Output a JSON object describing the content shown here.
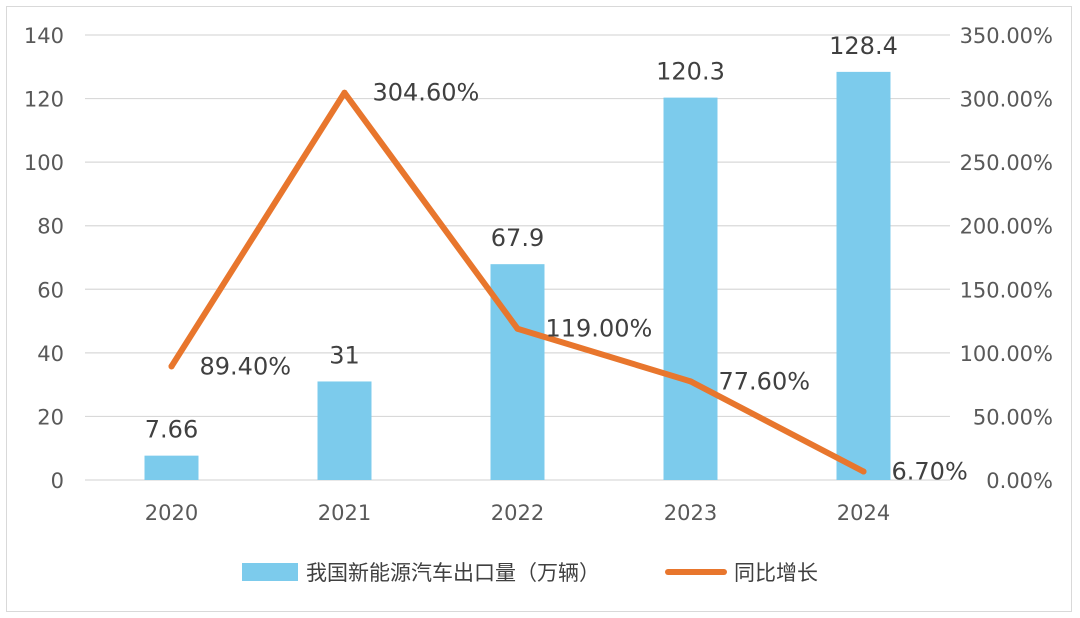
{
  "chart_data": {
    "type": "bar+line",
    "title": "",
    "categories": [
      "2020",
      "2021",
      "2022",
      "2023",
      "2024"
    ],
    "series": [
      {
        "name": "我国新能源汽车出口量（万辆）",
        "type": "bar",
        "axis": "left",
        "values": [
          7.66,
          31,
          67.9,
          120.3,
          128.4
        ],
        "labels": [
          "7.66",
          "31",
          "67.9",
          "120.3",
          "128.4"
        ]
      },
      {
        "name": "同比增长",
        "type": "line",
        "axis": "right",
        "values": [
          89.4,
          304.6,
          119.0,
          77.6,
          6.7
        ],
        "labels": [
          "89.40%",
          "304.60%",
          "119.00%",
          "77.60%",
          "6.70%"
        ]
      }
    ],
    "y_left": {
      "min": 0,
      "max": 140,
      "ticks": [
        "0",
        "20",
        "40",
        "60",
        "80",
        "100",
        "120",
        "140"
      ]
    },
    "y_right": {
      "min": 0,
      "max": 350,
      "ticks": [
        "0.00%",
        "50.00%",
        "100.00%",
        "150.00%",
        "200.00%",
        "250.00%",
        "300.00%",
        "350.00%"
      ]
    },
    "grid": true,
    "legend_position": "bottom",
    "colors": {
      "bar": "#7ccbec",
      "line": "#e8762d",
      "grid": "#d9d9d9"
    }
  }
}
